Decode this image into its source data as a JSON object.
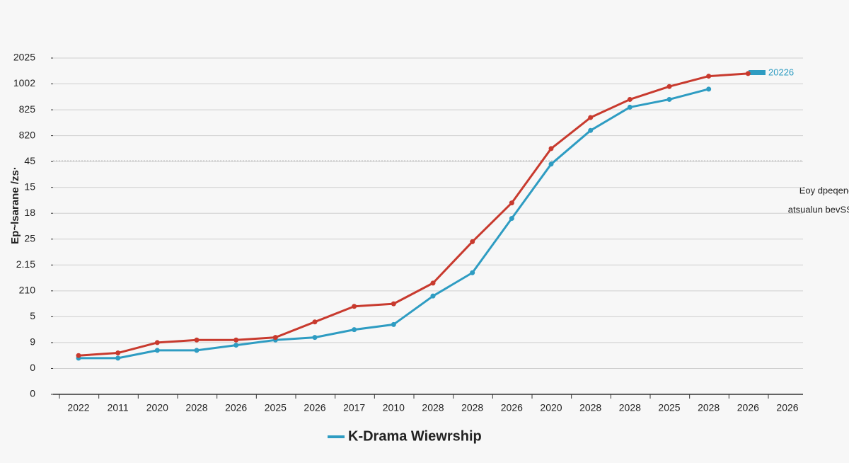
{
  "chart_data": {
    "type": "line",
    "y_label": "Ep~lsarane /zs·",
    "right_label": [
      "Eoy dpeqend",
      "atsualun bevSSSS"
    ],
    "annotation": "20226",
    "categories": [
      "2022",
      "2011",
      "2020",
      "2028",
      "2026",
      "2025",
      "2026",
      "2017",
      "2010",
      "2028",
      "2028",
      "2026",
      "2020",
      "2028",
      "2028",
      "2025",
      "2028",
      "2026",
      "2026"
    ],
    "series": [
      {
        "name": "K-Drama Wiewrship",
        "color": "#2e9cc2",
        "values": [
          1.4,
          1.4,
          1.7,
          1.7,
          1.9,
          2.1,
          2.2,
          2.5,
          2.7,
          3.8,
          4.7,
          6.8,
          8.9,
          10.2,
          11.1,
          11.4,
          11.8,
          null,
          null
        ]
      },
      {
        "color": "#c83a2e",
        "values": [
          1.5,
          1.6,
          2.0,
          2.1,
          2.1,
          2.2,
          2.8,
          3.4,
          3.5,
          4.3,
          5.9,
          7.4,
          9.5,
          10.7,
          11.4,
          11.9,
          12.3,
          12.4,
          null
        ]
      }
    ],
    "ylim": [
      0,
      13
    ],
    "yticks": [
      {
        "value": 0,
        "label": "0"
      },
      {
        "value": 1,
        "label": "0"
      },
      {
        "value": 2,
        "label": "9"
      },
      {
        "value": 3,
        "label": "5"
      },
      {
        "value": 4,
        "label": "210"
      },
      {
        "value": 5,
        "label": "2.15"
      },
      {
        "value": 6,
        "label": "25"
      },
      {
        "value": 7,
        "label": "18"
      },
      {
        "value": 8,
        "label": "15"
      },
      {
        "value": 9,
        "label": "45"
      },
      {
        "value": 10,
        "label": "820"
      },
      {
        "value": 11,
        "label": "825"
      },
      {
        "value": 12,
        "label": "1002"
      },
      {
        "value": 13,
        "label": "2025"
      }
    ],
    "grid": true
  }
}
